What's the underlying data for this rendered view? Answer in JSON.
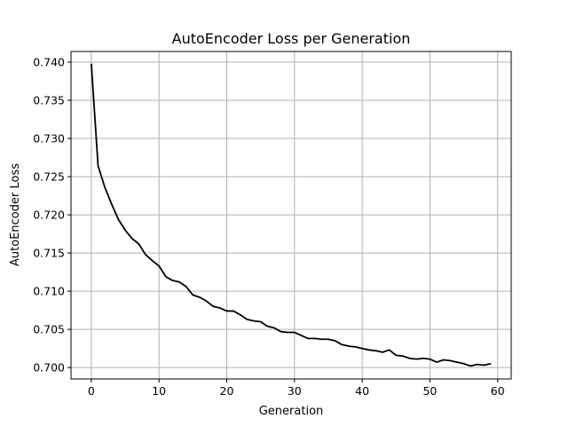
{
  "chart_data": {
    "type": "line",
    "title": "AutoEncoder Loss per Generation",
    "xlabel": "Generation",
    "ylabel": "AutoEncoder Loss",
    "xlim": [
      -3,
      62
    ],
    "ylim": [
      0.6985,
      0.7414
    ],
    "xticks": [
      0,
      10,
      20,
      30,
      40,
      50,
      60
    ],
    "yticks": [
      0.7,
      0.705,
      0.71,
      0.715,
      0.72,
      0.725,
      0.73,
      0.735,
      0.74
    ],
    "ytick_labels": [
      "0.700",
      "0.705",
      "0.710",
      "0.715",
      "0.720",
      "0.725",
      "0.730",
      "0.735",
      "0.740"
    ],
    "grid": true,
    "series": [
      {
        "color": "#000000",
        "x": [
          0,
          1,
          2,
          3,
          4,
          5,
          6,
          7,
          8,
          9,
          10,
          11,
          12,
          13,
          14,
          15,
          16,
          17,
          18,
          19,
          20,
          21,
          22,
          23,
          24,
          25,
          26,
          27,
          28,
          29,
          30,
          31,
          32,
          33,
          34,
          35,
          36,
          37,
          38,
          39,
          40,
          41,
          42,
          43,
          44,
          45,
          46,
          47,
          48,
          49,
          50,
          51,
          52,
          53,
          54,
          55,
          56,
          57,
          58,
          59
        ],
        "y": [
          0.7398,
          0.7264,
          0.7236,
          0.7214,
          0.7194,
          0.718,
          0.7169,
          0.7162,
          0.7148,
          0.714,
          0.7133,
          0.7119,
          0.7114,
          0.7112,
          0.7106,
          0.7095,
          0.7092,
          0.7087,
          0.708,
          0.7078,
          0.7074,
          0.7074,
          0.7069,
          0.7063,
          0.7061,
          0.706,
          0.7054,
          0.7052,
          0.7047,
          0.7046,
          0.7046,
          0.7042,
          0.7038,
          0.7038,
          0.7037,
          0.7037,
          0.7035,
          0.703,
          0.7028,
          0.7027,
          0.7025,
          0.7023,
          0.7022,
          0.702,
          0.7023,
          0.7016,
          0.7015,
          0.7012,
          0.7011,
          0.7012,
          0.7011,
          0.7007,
          0.701,
          0.7009,
          0.7007,
          0.7005,
          0.7002,
          0.7004,
          0.7003,
          0.7005
        ]
      }
    ]
  }
}
